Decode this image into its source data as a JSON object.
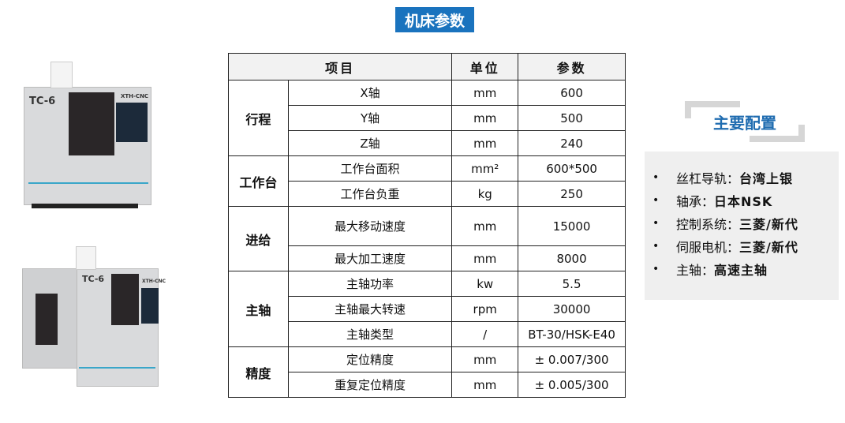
{
  "title": "机床参数",
  "table": {
    "headers": [
      "项目",
      "单位",
      "参数"
    ],
    "groups": [
      {
        "name": "行程",
        "rows": [
          {
            "item": "X轴",
            "unit": "mm",
            "value": "600"
          },
          {
            "item": "Y轴",
            "unit": "mm",
            "value": "500"
          },
          {
            "item": "Z轴",
            "unit": "mm",
            "value": "240"
          }
        ]
      },
      {
        "name": "工作台",
        "rows": [
          {
            "item": "工作台面积",
            "unit": "mm²",
            "value": "600*500"
          },
          {
            "item": "工作台负重",
            "unit": "kg",
            "value": "250"
          }
        ]
      },
      {
        "name": "进给",
        "rows": [
          {
            "item": "最大移动速度",
            "unit": "mm",
            "value": "15000"
          },
          {
            "item": "最大加工速度",
            "unit": "mm",
            "value": "8000"
          }
        ]
      },
      {
        "name": "主轴",
        "rows": [
          {
            "item": "主轴功率",
            "unit": "kw",
            "value": "5.5"
          },
          {
            "item": "主轴最大转速",
            "unit": "rpm",
            "value": "30000"
          },
          {
            "item": "主轴类型",
            "unit": "/",
            "value": "BT-30/HSK-E40"
          }
        ]
      },
      {
        "name": "精度",
        "rows": [
          {
            "item": "定位精度",
            "unit": "mm",
            "value": "± 0.007/300"
          },
          {
            "item": "重复定位精度",
            "unit": "mm",
            "value": "± 0.005/300"
          }
        ]
      }
    ]
  },
  "config": {
    "title": "主要配置",
    "items": [
      {
        "label": "丝杠导轨：",
        "value": "台湾上银"
      },
      {
        "label": "轴承：",
        "value": "日本NSK"
      },
      {
        "label": "控制系统：",
        "value": "三菱/新代"
      },
      {
        "label": "伺服电机：",
        "value": "三菱/新代"
      },
      {
        "label": "主轴：",
        "value": "高速主轴"
      }
    ]
  },
  "machines": [
    {
      "model": "TC-6",
      "brand": "XTH-CNC"
    },
    {
      "model": "TC-6",
      "brand": "XTH-CNC"
    }
  ]
}
